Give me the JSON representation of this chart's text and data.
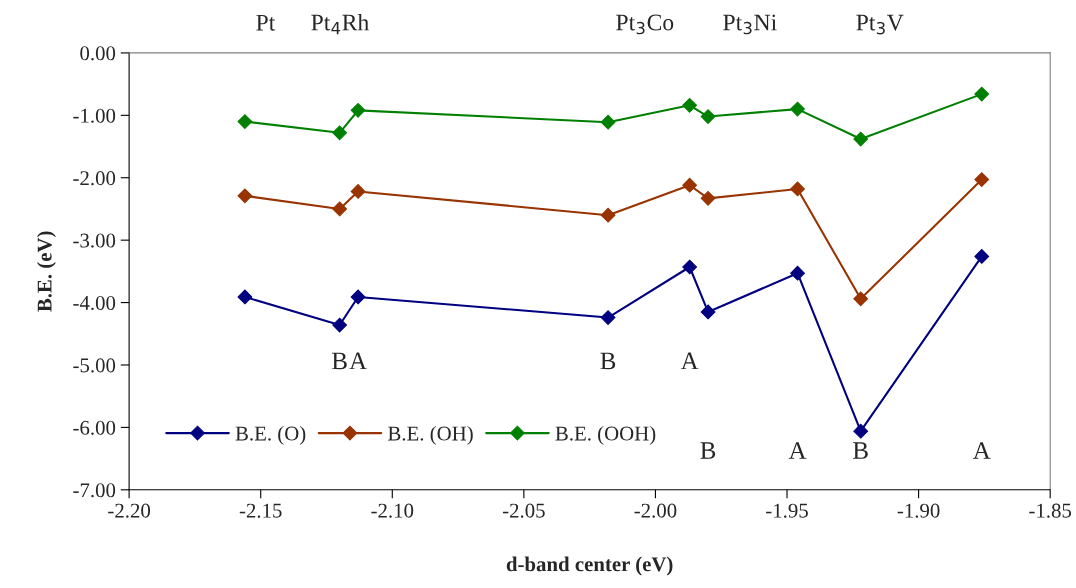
{
  "chart_data": {
    "type": "line",
    "xlabel": "d-band center (eV)",
    "ylabel": "B.E. (eV)",
    "x": [
      -2.156,
      -2.12,
      -2.113,
      -2.018,
      -1.987,
      -1.98,
      -1.946,
      -1.922,
      -1.876
    ],
    "series": [
      {
        "name": "B.E. (O)",
        "color": "#000080",
        "values": [
          -3.91,
          -4.36,
          -3.91,
          -4.24,
          -3.43,
          -4.15,
          -3.53,
          -6.06,
          -3.26
        ]
      },
      {
        "name": "B.E. (OH)",
        "color": "#993300",
        "values": [
          -2.29,
          -2.5,
          -2.22,
          -2.6,
          -2.12,
          -2.33,
          -2.18,
          -3.94,
          -2.03
        ]
      },
      {
        "name": "B.E. (OOH)",
        "color": "#008000",
        "values": [
          -1.1,
          -1.28,
          -0.92,
          -1.11,
          -0.84,
          -1.02,
          -0.9,
          -1.38,
          -0.66
        ]
      }
    ],
    "xlim": [
      -2.2,
      -1.85
    ],
    "xticks": [
      {
        "value": -2.2,
        "label": "-2.20"
      },
      {
        "value": -2.15,
        "label": "-2.15"
      },
      {
        "value": -2.1,
        "label": "-2.10"
      },
      {
        "value": -2.05,
        "label": "-2.05"
      },
      {
        "value": -2.0,
        "label": "-2.00"
      },
      {
        "value": -1.95,
        "label": "-1.95"
      },
      {
        "value": -1.9,
        "label": "-1.90"
      },
      {
        "value": -1.85,
        "label": "-1.85"
      }
    ],
    "ylim": [
      -7,
      0
    ],
    "yticks": [
      {
        "value": 0,
        "label": "0.00"
      },
      {
        "value": -1,
        "label": "-1.00"
      },
      {
        "value": -2,
        "label": "-2.00"
      },
      {
        "value": -3,
        "label": "-3.00"
      },
      {
        "value": -4,
        "label": "-4.00"
      },
      {
        "value": -5,
        "label": "-5.00"
      },
      {
        "value": -6,
        "label": "-6.00"
      },
      {
        "value": -7,
        "label": "-7.00"
      }
    ],
    "annotations": [
      "Pt",
      "Pt$_{4}$Rh",
      "Pt$_{3}$Co",
      "Pt$_{3}$Ni",
      "Pt$_{3}$V",
      "B",
      "A",
      "B",
      "A",
      "B",
      "A",
      "B",
      "A"
    ],
    "marker": "diamond",
    "line_style": "solid",
    "legend": "bottom left",
    "grid": false
  }
}
